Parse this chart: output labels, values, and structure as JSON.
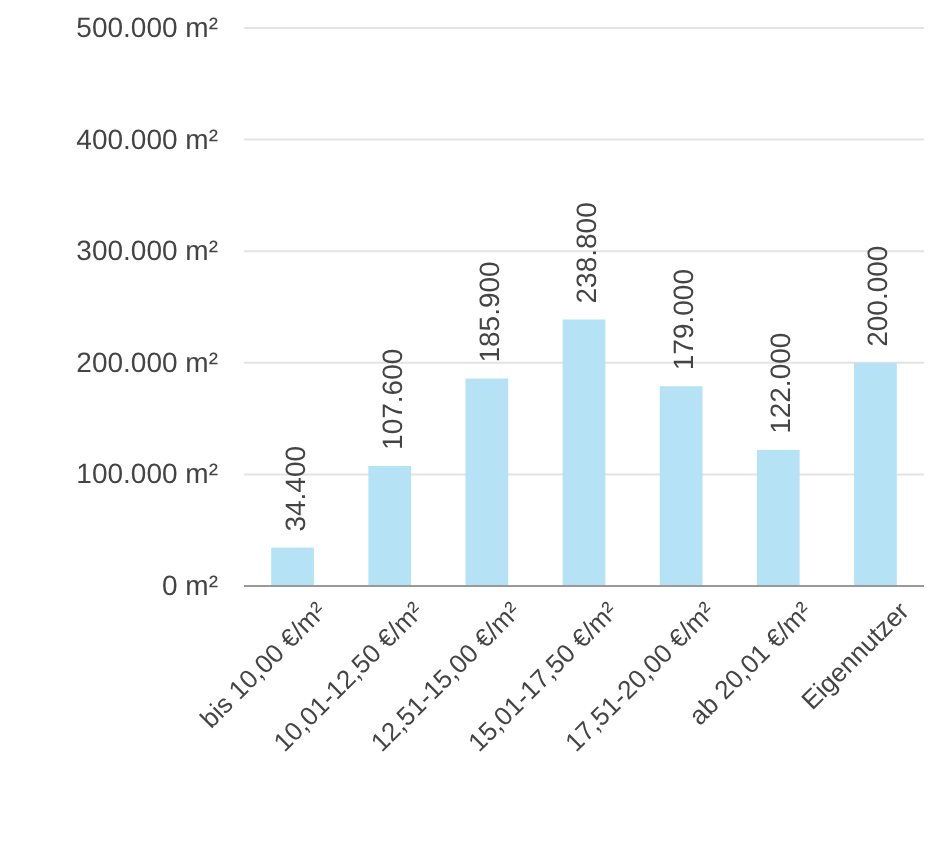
{
  "chart_data": {
    "type": "bar",
    "categories": [
      "bis 10,00 €/m²",
      "10,01-12,50 €/m²",
      "12,51-15,00 €/m²",
      "15,01-17,50 €/m²",
      "17,51-20,00 €/m²",
      "ab 20,01 €/m²",
      "Eigennutzer"
    ],
    "values": [
      34400,
      107600,
      185900,
      238800,
      179000,
      122000,
      200000
    ],
    "value_labels": [
      "34.400",
      "107.600",
      "185.900",
      "238.800",
      "179.000",
      "122.000",
      "200.000"
    ],
    "color": "#b5e3f5",
    "ylim": [
      0,
      500000
    ],
    "yticks": [
      {
        "value": 0,
        "label": "0 m²"
      },
      {
        "value": 100000,
        "label": "100.000 m²"
      },
      {
        "value": 200000,
        "label": "200.000 m²"
      },
      {
        "value": 300000,
        "label": "300.000 m²"
      },
      {
        "value": 400000,
        "label": "400.000 m²"
      },
      {
        "value": 500000,
        "label": "500.000 m²"
      }
    ],
    "grid": "y"
  }
}
